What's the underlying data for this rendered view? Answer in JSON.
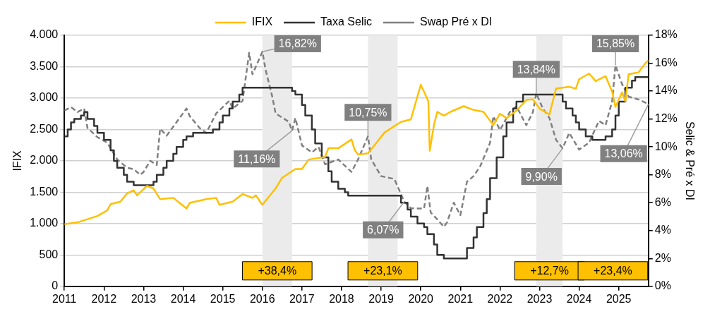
{
  "chart_data": {
    "type": "line",
    "xlim": [
      "2011-01",
      "2025-10"
    ],
    "xticks": [
      "2011",
      "2012",
      "2013",
      "2014",
      "2015",
      "2016",
      "2017",
      "2018",
      "2019",
      "2020",
      "2021",
      "2022",
      "2023",
      "2024",
      "2025"
    ],
    "ylim": [
      0,
      4000
    ],
    "yticks": [
      0,
      500,
      {
        "value": 1000,
        "label": "1.000"
      },
      {
        "value": 1500,
        "label": "1.500"
      },
      {
        "value": 2000,
        "label": "2.000"
      },
      {
        "value": 2500,
        "label": "2.500"
      },
      {
        "value": 3000,
        "label": "3.000"
      },
      {
        "value": 3500,
        "label": "3.500"
      },
      {
        "value": 4000,
        "label": "4.000"
      }
    ],
    "y2lim": [
      0,
      18
    ],
    "y2ticks": [
      {
        "value": 0,
        "label": "0%"
      },
      {
        "value": 2,
        "label": "2%"
      },
      {
        "value": 4,
        "label": "4%"
      },
      {
        "value": 6,
        "label": "6%"
      },
      {
        "value": 8,
        "label": "8%"
      },
      {
        "value": 10,
        "label": "10%"
      },
      {
        "value": 12,
        "label": "12%"
      },
      {
        "value": 14,
        "label": "14%"
      },
      {
        "value": 16,
        "label": "16%"
      },
      {
        "value": 18,
        "label": "18%"
      }
    ],
    "ylabel": "IFIX",
    "y2label": "Selic & Pré x DI",
    "grid": "y",
    "legend": "top",
    "marker": "none",
    "series": [
      {
        "name": "IFIX",
        "type": "line",
        "color": "#ffc000",
        "line_style": "solid",
        "x": [
          "2011-01",
          "2011-05",
          "2011-11",
          "2012-02",
          "2012-03",
          "2012-06",
          "2012-08",
          "2012-10",
          "2012-11",
          "2013-02",
          "2013-04",
          "2013-06",
          "2013-10",
          "2014-02",
          "2014-03",
          "2014-08",
          "2014-11",
          "2014-12",
          "2015-04",
          "2015-07",
          "2015-10",
          "2015-11",
          "2016-01",
          "2016-05",
          "2016-07",
          "2016-11",
          "2017-01",
          "2017-03",
          "2017-08",
          "2017-09",
          "2017-12",
          "2018-04",
          "2018-05",
          "2018-06",
          "2018-09",
          "2018-11",
          "2019-02",
          "2019-07",
          "2019-10",
          "2020-01",
          "2020-02",
          "2020-03-10",
          "2020-03-23",
          "2020-05",
          "2020-06",
          "2020-08",
          "2020-10",
          "2021-02",
          "2021-05",
          "2021-08",
          "2021-11",
          "2022-01",
          "2022-03",
          "2022-06",
          "2022-09",
          "2022-11",
          "2023-01",
          "2023-04",
          "2023-06",
          "2023-10",
          "2023-12",
          "2024-01",
          "2024-04",
          "2024-06",
          "2024-09",
          "2024-11",
          "2024-12",
          "2025-02",
          "2025-03",
          "2025-04",
          "2025-07",
          "2025-09",
          "2025-10"
        ],
        "values": [
          990,
          1020,
          1120,
          1210,
          1310,
          1350,
          1480,
          1530,
          1450,
          1600,
          1560,
          1390,
          1410,
          1240,
          1330,
          1390,
          1410,
          1300,
          1350,
          1470,
          1410,
          1450,
          1300,
          1560,
          1730,
          1870,
          1870,
          2020,
          2060,
          2200,
          2200,
          2340,
          2170,
          2100,
          2120,
          2250,
          2450,
          2620,
          2660,
          3210,
          3100,
          2950,
          2160,
          2570,
          2780,
          2720,
          2780,
          2870,
          2810,
          2780,
          2570,
          2750,
          2680,
          2800,
          2970,
          2980,
          2830,
          2740,
          3150,
          3180,
          3150,
          3300,
          3390,
          3270,
          3350,
          3100,
          2860,
          3090,
          2950,
          3380,
          3410,
          3550,
          3600
        ]
      },
      {
        "name": "Taxa Selic",
        "type": "step",
        "axis": "y2",
        "color": "#333333",
        "line_style": "solid",
        "x": [
          "2011-01",
          "2011-02",
          "2011-03",
          "2011-04",
          "2011-06",
          "2011-07",
          "2011-08",
          "2011-10",
          "2011-11",
          "2012-01",
          "2012-03",
          "2012-04",
          "2012-05",
          "2012-07",
          "2012-08",
          "2012-10",
          "2013-04",
          "2013-05",
          "2013-07",
          "2013-08",
          "2013-10",
          "2013-11",
          "2014-01",
          "2014-02",
          "2014-04",
          "2014-10",
          "2014-12",
          "2015-01",
          "2015-03",
          "2015-04",
          "2015-06",
          "2015-07",
          "2016-10",
          "2016-11",
          "2017-01",
          "2017-02",
          "2017-04",
          "2017-05",
          "2017-07",
          "2017-09",
          "2017-10",
          "2017-12",
          "2018-02",
          "2018-03",
          "2019-07",
          "2019-09",
          "2019-10",
          "2019-12",
          "2020-02",
          "2020-03",
          "2020-05",
          "2020-06",
          "2020-08",
          "2021-03",
          "2021-05",
          "2021-06",
          "2021-08",
          "2021-09",
          "2021-10",
          "2021-12",
          "2022-02",
          "2022-03",
          "2022-05",
          "2022-06",
          "2022-08",
          "2023-08",
          "2023-09",
          "2023-11",
          "2023-12",
          "2024-01",
          "2024-03",
          "2024-05",
          "2024-09",
          "2024-11",
          "2024-12",
          "2025-01",
          "2025-03",
          "2025-05",
          "2025-06",
          "2025-10"
        ],
        "values": [
          10.75,
          11.25,
          11.75,
          12.0,
          12.25,
          12.5,
          12.0,
          11.5,
          11.0,
          10.5,
          9.75,
          9.0,
          8.5,
          8.0,
          7.5,
          7.25,
          7.5,
          8.0,
          8.5,
          9.0,
          9.5,
          10.0,
          10.5,
          10.75,
          11.0,
          11.25,
          11.75,
          12.25,
          12.75,
          13.25,
          13.75,
          14.25,
          14.0,
          13.75,
          13.0,
          12.25,
          11.25,
          10.25,
          9.25,
          8.25,
          7.5,
          7.0,
          6.75,
          6.5,
          6.0,
          5.5,
          5.0,
          4.5,
          4.25,
          3.75,
          3.0,
          2.25,
          2.0,
          2.75,
          3.5,
          4.25,
          5.25,
          6.25,
          7.75,
          9.25,
          10.75,
          11.75,
          12.75,
          13.25,
          13.75,
          13.25,
          12.75,
          12.25,
          11.75,
          11.25,
          10.75,
          10.5,
          10.75,
          11.25,
          12.25,
          13.25,
          14.25,
          14.75,
          15.0,
          15.0
        ]
      },
      {
        "name": "Swap Pré x DI",
        "type": "line",
        "axis": "y2",
        "color": "#808080",
        "line_style": "dashed",
        "x": [
          "2011-01",
          "2011-03",
          "2011-05",
          "2011-07",
          "2011-08",
          "2011-11",
          "2012-02",
          "2012-05",
          "2012-08",
          "2012-10",
          "2012-12",
          "2013-01",
          "2013-03",
          "2013-05",
          "2013-06",
          "2013-08",
          "2013-12",
          "2014-02",
          "2014-03",
          "2014-06",
          "2014-08",
          "2014-11",
          "2015-03",
          "2015-04",
          "2015-07",
          "2015-09",
          "2015-10",
          "2016-01",
          "2016-02",
          "2016-04",
          "2016-05",
          "2016-09",
          "2016-10",
          "2016-11",
          "2017-01",
          "2017-04",
          "2017-06",
          "2017-08",
          "2017-12",
          "2018-04",
          "2018-06",
          "2018-09",
          "2018-10",
          "2019-01",
          "2019-05",
          "2019-08",
          "2019-10",
          "2020-02",
          "2020-03",
          "2020-04",
          "2020-06",
          "2020-08",
          "2020-09",
          "2020-11",
          "2021-01",
          "2021-03",
          "2021-05",
          "2021-07",
          "2021-10",
          "2021-11",
          "2022-01",
          "2022-04",
          "2022-06",
          "2022-09",
          "2022-11",
          "2022-12",
          "2023-02",
          "2023-04",
          "2023-06",
          "2023-08",
          "2023-10",
          "2024-01",
          "2024-04",
          "2024-07",
          "2024-09",
          "2024-11",
          "2024-12",
          "2025-02",
          "2025-04",
          "2025-07",
          "2025-10"
        ],
        "values": [
          12.6,
          12.85,
          12.5,
          12.75,
          11.35,
          10.7,
          10.3,
          9.1,
          8.5,
          8.4,
          8.0,
          8.2,
          9.0,
          8.7,
          11.3,
          10.8,
          12.1,
          12.75,
          12.2,
          11.35,
          11.0,
          12.4,
          13.3,
          12.75,
          13.3,
          16.75,
          15.2,
          16.82,
          15.5,
          13.6,
          12.4,
          11.8,
          11.16,
          12.07,
          10.1,
          9.6,
          10.0,
          8.75,
          9.1,
          8.2,
          9.1,
          10.75,
          9.1,
          7.9,
          7.7,
          6.07,
          5.6,
          5.57,
          7.2,
          5.3,
          4.8,
          4.27,
          4.6,
          6.0,
          5.1,
          7.5,
          7.9,
          8.6,
          10.3,
          12.2,
          11.2,
          12.5,
          12.9,
          11.55,
          12.5,
          13.84,
          12.75,
          12.07,
          10.5,
          9.9,
          11.0,
          9.8,
          10.3,
          11.86,
          11.55,
          13.27,
          15.85,
          14.5,
          13.6,
          13.4,
          13.06
        ],
        "value_labels": [
          null,
          null,
          null,
          null,
          null,
          null,
          null,
          null,
          null,
          null,
          null,
          null,
          null,
          null,
          null,
          null,
          null,
          null,
          null,
          null,
          null,
          null,
          null,
          null,
          null,
          null,
          null,
          "16,82%",
          null,
          null,
          null,
          null,
          "11,16%",
          null,
          null,
          null,
          null,
          null,
          null,
          null,
          null,
          "10,75%",
          null,
          null,
          null,
          "6,07%",
          null,
          null,
          null,
          null,
          null,
          null,
          null,
          null,
          null,
          null,
          null,
          null,
          null,
          null,
          null,
          null,
          null,
          null,
          null,
          "13,84%",
          null,
          null,
          null,
          "9,90%",
          null,
          null,
          null,
          null,
          null,
          null,
          "15,85%",
          null,
          null,
          null,
          "13,06%"
        ]
      }
    ],
    "bands": [
      {
        "axis": "x",
        "from": "2016-01",
        "to": "2016-10",
        "color": "#ebebeb"
      },
      {
        "axis": "x",
        "from": "2018-09",
        "to": "2019-06",
        "color": "#ebebeb"
      },
      {
        "axis": "x",
        "from": "2022-12",
        "to": "2023-08",
        "color": "#ebebeb"
      }
    ],
    "annotations": [
      "+38,4%",
      "+23,1%",
      "+12,7%",
      "+23,4%"
    ]
  }
}
